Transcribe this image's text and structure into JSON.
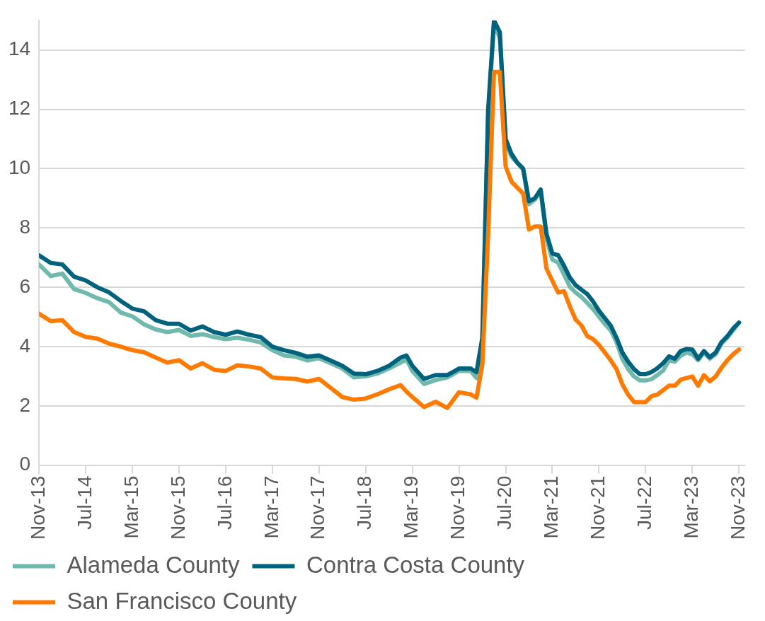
{
  "chart_data": {
    "type": "line",
    "x": [
      "2013-11",
      "2014-01",
      "2014-03",
      "2014-05",
      "2014-07",
      "2014-09",
      "2014-11",
      "2015-01",
      "2015-03",
      "2015-05",
      "2015-07",
      "2015-09",
      "2015-11",
      "2016-01",
      "2016-03",
      "2016-05",
      "2016-07",
      "2016-09",
      "2016-11",
      "2017-01",
      "2017-03",
      "2017-05",
      "2017-07",
      "2017-09",
      "2017-11",
      "2018-01",
      "2018-03",
      "2018-05",
      "2018-07",
      "2018-09",
      "2018-11",
      "2019-01",
      "2019-02",
      "2019-03",
      "2019-05",
      "2019-07",
      "2019-09",
      "2019-11",
      "2020-01",
      "2020-02",
      "2020-03",
      "2020-04",
      "2020-05",
      "2020-06",
      "2020-07",
      "2020-08",
      "2020-09",
      "2020-10",
      "2020-11",
      "2020-12",
      "2021-01",
      "2021-02",
      "2021-03",
      "2021-04",
      "2021-05",
      "2021-06",
      "2021-07",
      "2021-08",
      "2021-09",
      "2021-10",
      "2021-11",
      "2021-12",
      "2022-01",
      "2022-02",
      "2022-03",
      "2022-04",
      "2022-05",
      "2022-06",
      "2022-07",
      "2022-08",
      "2022-09",
      "2022-10",
      "2022-11",
      "2022-12",
      "2023-01",
      "2023-02",
      "2023-03",
      "2023-04",
      "2023-05",
      "2023-06",
      "2023-07",
      "2023-08",
      "2023-09",
      "2023-10",
      "2023-11"
    ],
    "series": [
      {
        "name": "Alameda County",
        "color": "#6fb9ad",
        "values": [
          6.77,
          6.38,
          6.46,
          5.94,
          5.81,
          5.63,
          5.5,
          5.15,
          5.02,
          4.75,
          4.58,
          4.49,
          4.56,
          4.36,
          4.42,
          4.32,
          4.25,
          4.3,
          4.23,
          4.14,
          3.88,
          3.7,
          3.66,
          3.53,
          3.61,
          3.44,
          3.26,
          2.96,
          3.0,
          3.09,
          3.26,
          3.46,
          3.57,
          3.18,
          2.74,
          2.87,
          2.96,
          3.18,
          3.18,
          2.94,
          4.2,
          11.8,
          14.9,
          14.4,
          10.9,
          10.4,
          10.2,
          9.97,
          8.8,
          8.96,
          9.26,
          7.64,
          6.93,
          6.83,
          6.43,
          6.02,
          5.82,
          5.67,
          5.47,
          5.26,
          5.01,
          4.76,
          4.55,
          4.15,
          3.59,
          3.24,
          2.99,
          2.86,
          2.86,
          2.9,
          3.04,
          3.19,
          3.54,
          3.49,
          3.69,
          3.8,
          3.74,
          3.54,
          3.8,
          3.59,
          3.74,
          4.1,
          4.3,
          4.55,
          4.81
        ]
      },
      {
        "name": "Contra Costa County",
        "color": "#00627d",
        "values": [
          7.08,
          6.82,
          6.77,
          6.36,
          6.23,
          6.0,
          5.83,
          5.54,
          5.28,
          5.19,
          4.89,
          4.77,
          4.77,
          4.54,
          4.68,
          4.49,
          4.4,
          4.51,
          4.4,
          4.32,
          4.0,
          3.88,
          3.79,
          3.66,
          3.7,
          3.53,
          3.35,
          3.09,
          3.07,
          3.18,
          3.35,
          3.63,
          3.7,
          3.35,
          2.91,
          3.04,
          3.04,
          3.26,
          3.26,
          3.14,
          4.3,
          12.0,
          15.0,
          14.6,
          11.0,
          10.5,
          10.2,
          10.0,
          8.9,
          9.0,
          9.3,
          7.8,
          7.14,
          7.08,
          6.73,
          6.33,
          6.07,
          5.92,
          5.77,
          5.52,
          5.21,
          4.96,
          4.71,
          4.3,
          3.8,
          3.49,
          3.24,
          3.07,
          3.07,
          3.14,
          3.27,
          3.44,
          3.67,
          3.59,
          3.85,
          3.92,
          3.9,
          3.59,
          3.85,
          3.64,
          3.8,
          4.15,
          4.35,
          4.61,
          4.81
        ]
      },
      {
        "name": "San Francisco County",
        "color": "#ff7a00",
        "values": [
          5.11,
          4.86,
          4.89,
          4.49,
          4.33,
          4.27,
          4.1,
          4.0,
          3.88,
          3.81,
          3.63,
          3.46,
          3.54,
          3.26,
          3.44,
          3.22,
          3.18,
          3.37,
          3.33,
          3.26,
          2.96,
          2.93,
          2.91,
          2.82,
          2.91,
          2.61,
          2.3,
          2.21,
          2.25,
          2.39,
          2.56,
          2.7,
          2.48,
          2.3,
          1.96,
          2.14,
          1.93,
          2.46,
          2.39,
          2.28,
          3.39,
          7.8,
          13.26,
          13.26,
          10.07,
          9.56,
          9.36,
          9.16,
          7.95,
          8.05,
          8.05,
          6.63,
          6.22,
          5.82,
          5.87,
          5.36,
          4.91,
          4.71,
          4.35,
          4.25,
          4.05,
          3.8,
          3.54,
          3.24,
          2.73,
          2.38,
          2.13,
          2.13,
          2.13,
          2.33,
          2.38,
          2.53,
          2.68,
          2.68,
          2.88,
          2.94,
          2.99,
          2.68,
          3.04,
          2.83,
          2.99,
          3.29,
          3.54,
          3.74,
          3.9
        ]
      }
    ],
    "xlim": [
      "2013-11",
      "2023-12"
    ],
    "xticks": [
      {
        "value": "2013-11",
        "label": "Nov-13"
      },
      {
        "value": "2014-07",
        "label": "Jul-14"
      },
      {
        "value": "2015-03",
        "label": "Mar-15"
      },
      {
        "value": "2015-11",
        "label": "Nov-15"
      },
      {
        "value": "2016-07",
        "label": "Jul-16"
      },
      {
        "value": "2017-03",
        "label": "Mar-17"
      },
      {
        "value": "2017-11",
        "label": "Nov-17"
      },
      {
        "value": "2018-07",
        "label": "Jul-18"
      },
      {
        "value": "2019-03",
        "label": "Mar-19"
      },
      {
        "value": "2019-11",
        "label": "Nov-19"
      },
      {
        "value": "2020-07",
        "label": "Jul-20"
      },
      {
        "value": "2021-03",
        "label": "Mar-21"
      },
      {
        "value": "2021-11",
        "label": "Nov-21"
      },
      {
        "value": "2022-07",
        "label": "Jul-22"
      },
      {
        "value": "2023-03",
        "label": "Mar-23"
      },
      {
        "value": "2023-11",
        "label": "Nov-23"
      }
    ],
    "ylim": [
      0,
      15
    ],
    "yticks": [
      0,
      2,
      4,
      6,
      8,
      10,
      12,
      14
    ],
    "grid": "y",
    "legend": "bottom",
    "marker": "none",
    "line_style": "solid"
  }
}
